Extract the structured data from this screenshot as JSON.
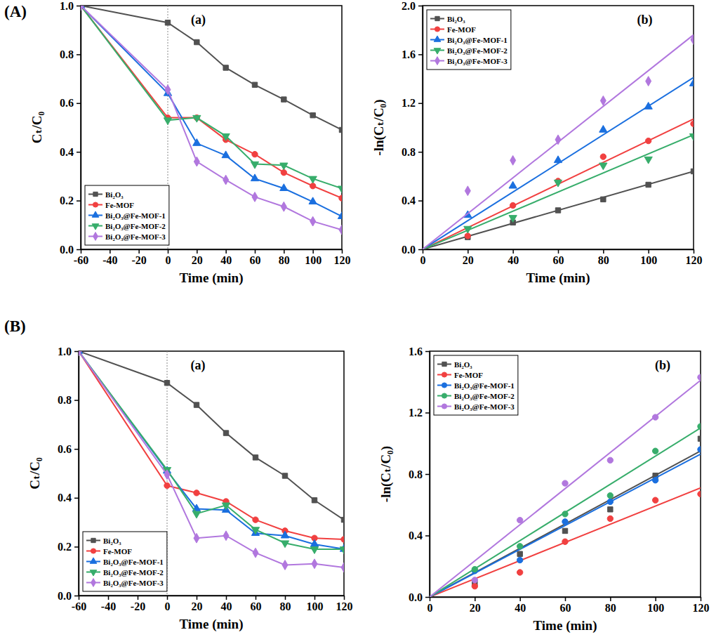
{
  "chart_data": [
    {
      "type": "line",
      "title": "(a)",
      "annotations": [
        "(A)"
      ],
      "x_label": "Time (min)",
      "y_label": "Cₜ/C₀",
      "x": [
        -60,
        0,
        20,
        40,
        60,
        80,
        100,
        120
      ],
      "xlim": [
        -60,
        120
      ],
      "xticks": [
        -60,
        -40,
        -20,
        0,
        20,
        40,
        60,
        80,
        100,
        120
      ],
      "ylim": [
        0,
        1
      ],
      "yticks": [
        {
          "value": 0,
          "label": "0.0"
        },
        0.2,
        0.4,
        0.6,
        0.8,
        {
          "value": 1,
          "label": "1.0"
        }
      ],
      "vline_x": 0,
      "grid": false,
      "legend": "lower left",
      "series": [
        {
          "name": "Bi₂O₃",
          "color": "#515151",
          "marker": "square",
          "values": [
            1.0,
            0.93,
            0.85,
            0.745,
            0.675,
            0.615,
            0.55,
            0.49
          ]
        },
        {
          "name": "Fe-MOF",
          "color": "#F14040",
          "marker": "circle",
          "values": [
            1.0,
            0.54,
            0.54,
            0.45,
            0.39,
            0.315,
            0.26,
            0.21
          ]
        },
        {
          "name": "Bi₂O₃@Fe-MOF-1",
          "color": "#1A6FDF",
          "marker": "triangle-up",
          "values": [
            1.0,
            0.64,
            0.435,
            0.385,
            0.29,
            0.25,
            0.195,
            0.135
          ]
        },
        {
          "name": "Bi₂O₃@Fe-MOF-2",
          "color": "#37AD6B",
          "marker": "triangle-down",
          "values": [
            1.0,
            0.53,
            0.54,
            0.465,
            0.35,
            0.345,
            0.29,
            0.25
          ]
        },
        {
          "name": "Bi₂O₃@Fe-MOF-3",
          "color": "#B177DE",
          "marker": "diamond",
          "values": [
            1.0,
            0.655,
            0.36,
            0.285,
            0.215,
            0.175,
            0.115,
            0.08
          ]
        }
      ]
    },
    {
      "type": "scatter",
      "title": "(b)",
      "x_label": "Time (min)",
      "y_label": "-ln(Cₜ/C₀)",
      "x": [
        20,
        40,
        60,
        80,
        100,
        120
      ],
      "fit_x": [
        0,
        120
      ],
      "xlim": [
        0,
        120
      ],
      "xticks": [
        0,
        20,
        40,
        60,
        80,
        100,
        120
      ],
      "ylim": [
        0,
        2
      ],
      "yticks": [
        {
          "value": 0,
          "label": "0.0"
        },
        0.4,
        0.8,
        1.2,
        1.6,
        {
          "value": 2,
          "label": "2.0"
        }
      ],
      "grid": false,
      "legend": "upper left",
      "series": [
        {
          "name": "Bi₂O₃",
          "color": "#515151",
          "marker": "square",
          "values": [
            0.1,
            0.22,
            0.32,
            0.41,
            0.53,
            0.64
          ],
          "fit_values": [
            0,
            0.64
          ]
        },
        {
          "name": "Fe-MOF",
          "color": "#F14040",
          "marker": "circle",
          "values": [
            0.11,
            0.36,
            0.56,
            0.76,
            0.89,
            1.03
          ],
          "fit_values": [
            0,
            1.07
          ]
        },
        {
          "name": "Bi₂O₃@Fe-MOF-1",
          "color": "#1A6FDF",
          "marker": "triangle-up",
          "values": [
            0.28,
            0.52,
            0.73,
            0.98,
            1.17,
            1.36
          ],
          "fit_values": [
            0,
            1.41
          ]
        },
        {
          "name": "Bi₂O₃@Fe-MOF-2",
          "color": "#37AD6B",
          "marker": "triangle-down",
          "values": [
            0.17,
            0.26,
            0.55,
            0.69,
            0.74,
            0.93
          ],
          "fit_values": [
            0,
            0.94
          ]
        },
        {
          "name": "Bi₂O₃@Fe-MOF-3",
          "color": "#B177DE",
          "marker": "diamond",
          "values": [
            0.48,
            0.73,
            0.9,
            1.22,
            1.38,
            1.72
          ],
          "fit_values": [
            0,
            1.76
          ]
        }
      ]
    },
    {
      "type": "line",
      "title": "(a)",
      "annotations": [
        "(B)"
      ],
      "x_label": "Time (min)",
      "y_label": "Cₜ/C₀",
      "x": [
        -60,
        0,
        20,
        40,
        60,
        80,
        100,
        120
      ],
      "xlim": [
        -60,
        120
      ],
      "xticks": [
        -60,
        -40,
        -20,
        0,
        20,
        40,
        60,
        80,
        100,
        120
      ],
      "ylim": [
        0,
        1
      ],
      "yticks": [
        {
          "value": 0,
          "label": "0.0"
        },
        0.2,
        0.4,
        0.6,
        0.8,
        {
          "value": 1,
          "label": "1.0"
        }
      ],
      "vline_x": 0,
      "grid": false,
      "legend": "lower left",
      "series": [
        {
          "name": "Bi₂O₃",
          "color": "#515151",
          "marker": "square",
          "values": [
            1.0,
            0.87,
            0.78,
            0.665,
            0.565,
            0.49,
            0.39,
            0.31
          ]
        },
        {
          "name": "Fe-MOF",
          "color": "#F14040",
          "marker": "circle",
          "values": [
            1.0,
            0.45,
            0.42,
            0.385,
            0.31,
            0.265,
            0.235,
            0.23
          ]
        },
        {
          "name": "Bi₂O₃@Fe-MOF-1",
          "color": "#1A6FDF",
          "marker": "triangle-up",
          "values": [
            1.0,
            0.51,
            0.355,
            0.35,
            0.255,
            0.245,
            0.21,
            0.19
          ]
        },
        {
          "name": "Bi₂O₃@Fe-MOF-2",
          "color": "#37AD6B",
          "marker": "triangle-down",
          "values": [
            1.0,
            0.515,
            0.335,
            0.37,
            0.27,
            0.215,
            0.19,
            0.19
          ]
        },
        {
          "name": "Bi₂O₃@Fe-MOF-3",
          "color": "#B177DE",
          "marker": "diamond",
          "values": [
            1.0,
            0.495,
            0.235,
            0.245,
            0.175,
            0.125,
            0.13,
            0.115
          ]
        }
      ]
    },
    {
      "type": "scatter",
      "title": "(b)",
      "x_label": "Time (min)",
      "y_label": "-ln(Cₜ/C₀)",
      "x": [
        20,
        40,
        60,
        80,
        100,
        120
      ],
      "fit_x": [
        0,
        120
      ],
      "xlim": [
        0,
        120
      ],
      "xticks": [
        0,
        20,
        40,
        60,
        80,
        100,
        120
      ],
      "ylim": [
        0,
        1.6
      ],
      "yticks": [
        {
          "value": 0,
          "label": "0.0"
        },
        0.4,
        0.8,
        1.2,
        1.6
      ],
      "grid": false,
      "legend": "upper left",
      "series": [
        {
          "name": "Bi₂O₃",
          "color": "#515151",
          "marker": "square",
          "values": [
            0.09,
            0.28,
            0.43,
            0.57,
            0.79,
            1.03
          ],
          "fit_values": [
            0,
            0.95
          ]
        },
        {
          "name": "Fe-MOF",
          "color": "#F14040",
          "marker": "circle",
          "values": [
            0.07,
            0.16,
            0.36,
            0.51,
            0.63,
            0.67
          ],
          "fit_values": [
            0,
            0.71
          ]
        },
        {
          "name": "Bi₂O₃@Fe-MOF-1",
          "color": "#1A6FDF",
          "marker": "circle",
          "values": [
            0.17,
            0.24,
            0.49,
            0.62,
            0.76,
            0.96
          ],
          "fit_values": [
            0,
            0.93
          ]
        },
        {
          "name": "Bi₂O₃@Fe-MOF-2",
          "color": "#37AD6B",
          "marker": "circle",
          "values": [
            0.18,
            0.33,
            0.54,
            0.66,
            0.95,
            1.11
          ],
          "fit_values": [
            0,
            1.1
          ]
        },
        {
          "name": "Bi₂O₃@Fe-MOF-3",
          "color": "#B177DE",
          "marker": "circle",
          "values": [
            0.11,
            0.5,
            0.74,
            0.89,
            1.17,
            1.43
          ],
          "fit_values": [
            0,
            1.41
          ]
        }
      ]
    }
  ]
}
